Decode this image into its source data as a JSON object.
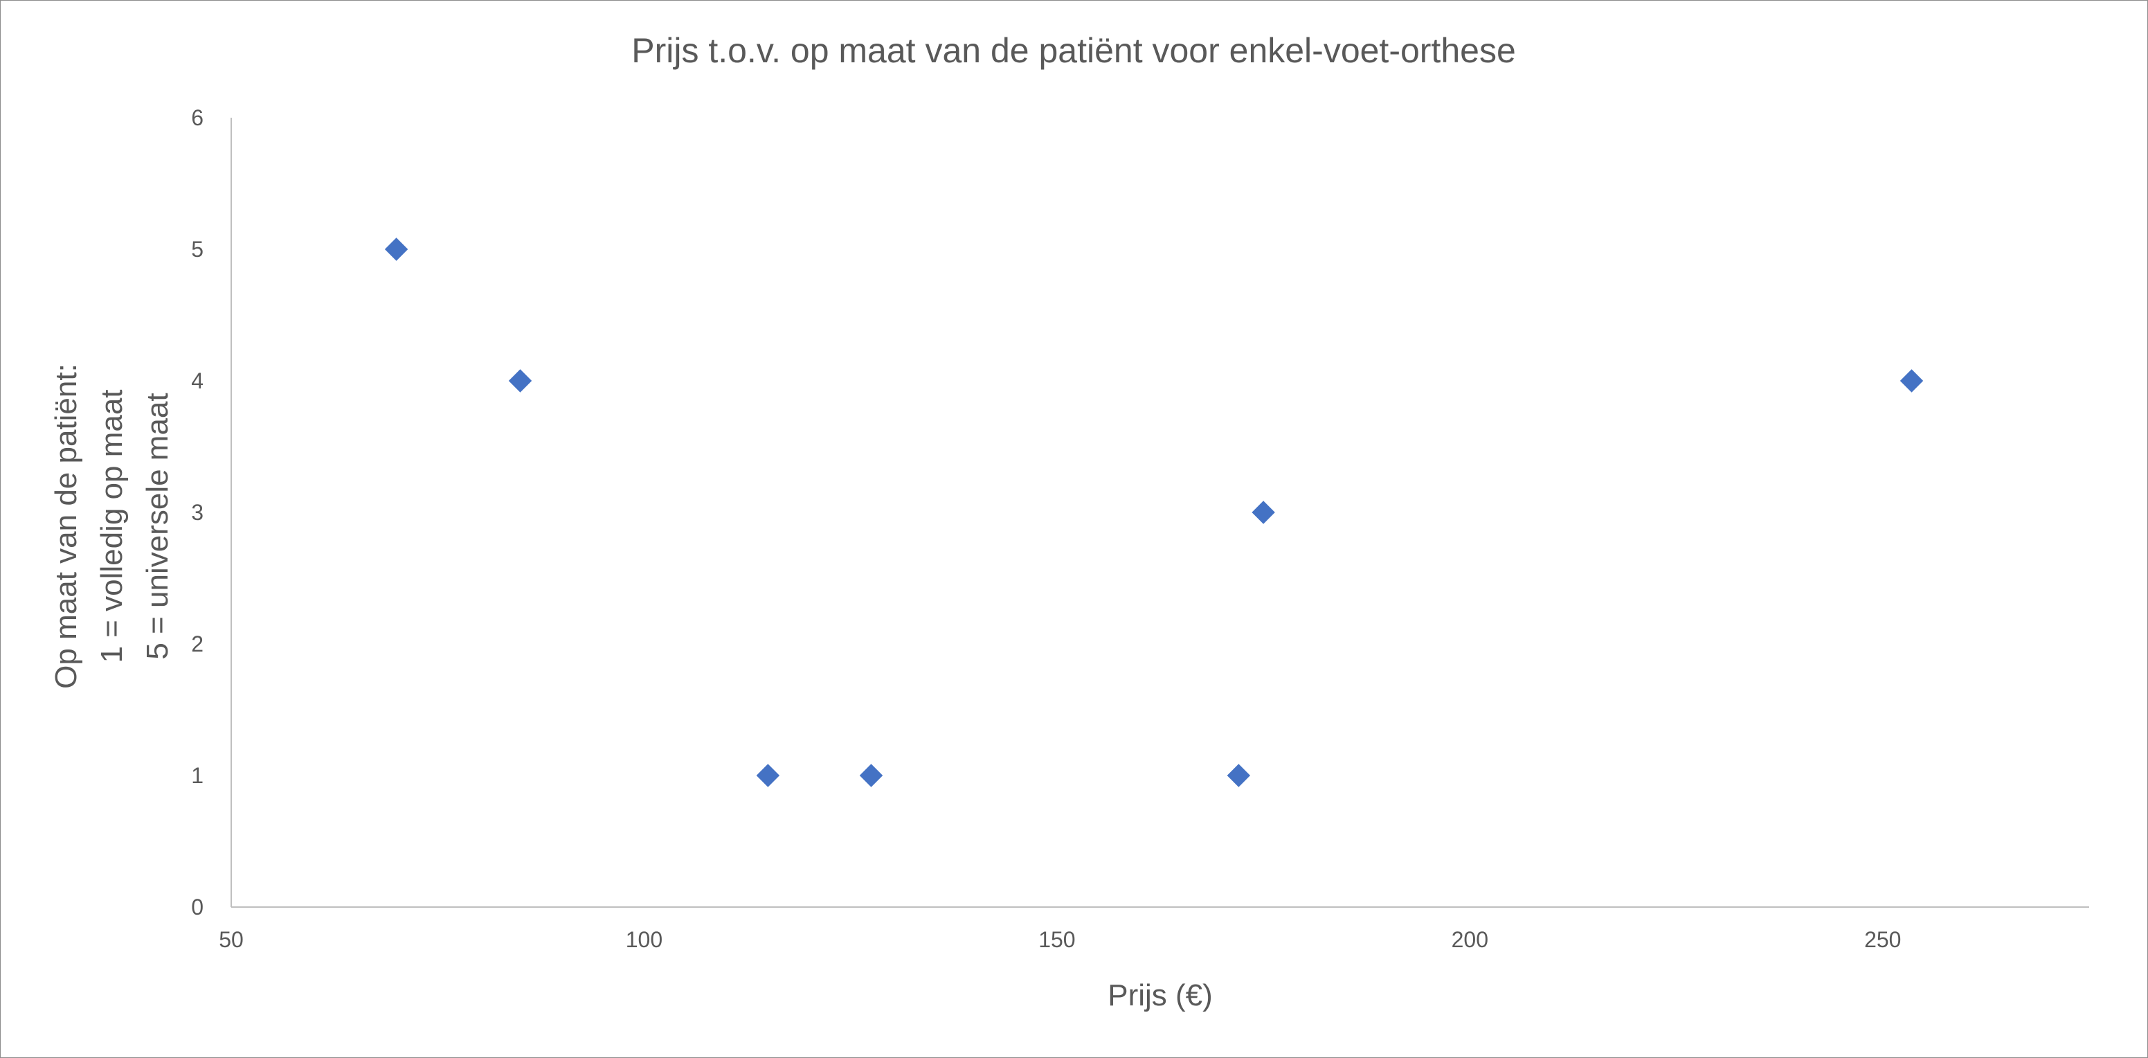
{
  "chart_data": {
    "type": "scatter",
    "title": "Prijs t.o.v. op maat van de patiënt voor enkel-voet-orthese",
    "xlabel": "Prijs (€)",
    "ylabel_lines": [
      "Op maat van de patiënt:",
      "1 = volledig op maat",
      "5 = universele maat"
    ],
    "xlim": [
      50,
      275
    ],
    "ylim": [
      0,
      6
    ],
    "x_ticks": [
      50,
      100,
      150,
      200,
      250
    ],
    "y_ticks": [
      0,
      1,
      2,
      3,
      4,
      5,
      6
    ],
    "grid": false,
    "marker": "diamond",
    "marker_color": "#4472C4",
    "points": [
      {
        "x": 70,
        "y": 5
      },
      {
        "x": 85,
        "y": 4
      },
      {
        "x": 115,
        "y": 1
      },
      {
        "x": 127.5,
        "y": 1
      },
      {
        "x": 172,
        "y": 1
      },
      {
        "x": 175,
        "y": 3
      },
      {
        "x": 253.5,
        "y": 4
      }
    ]
  }
}
